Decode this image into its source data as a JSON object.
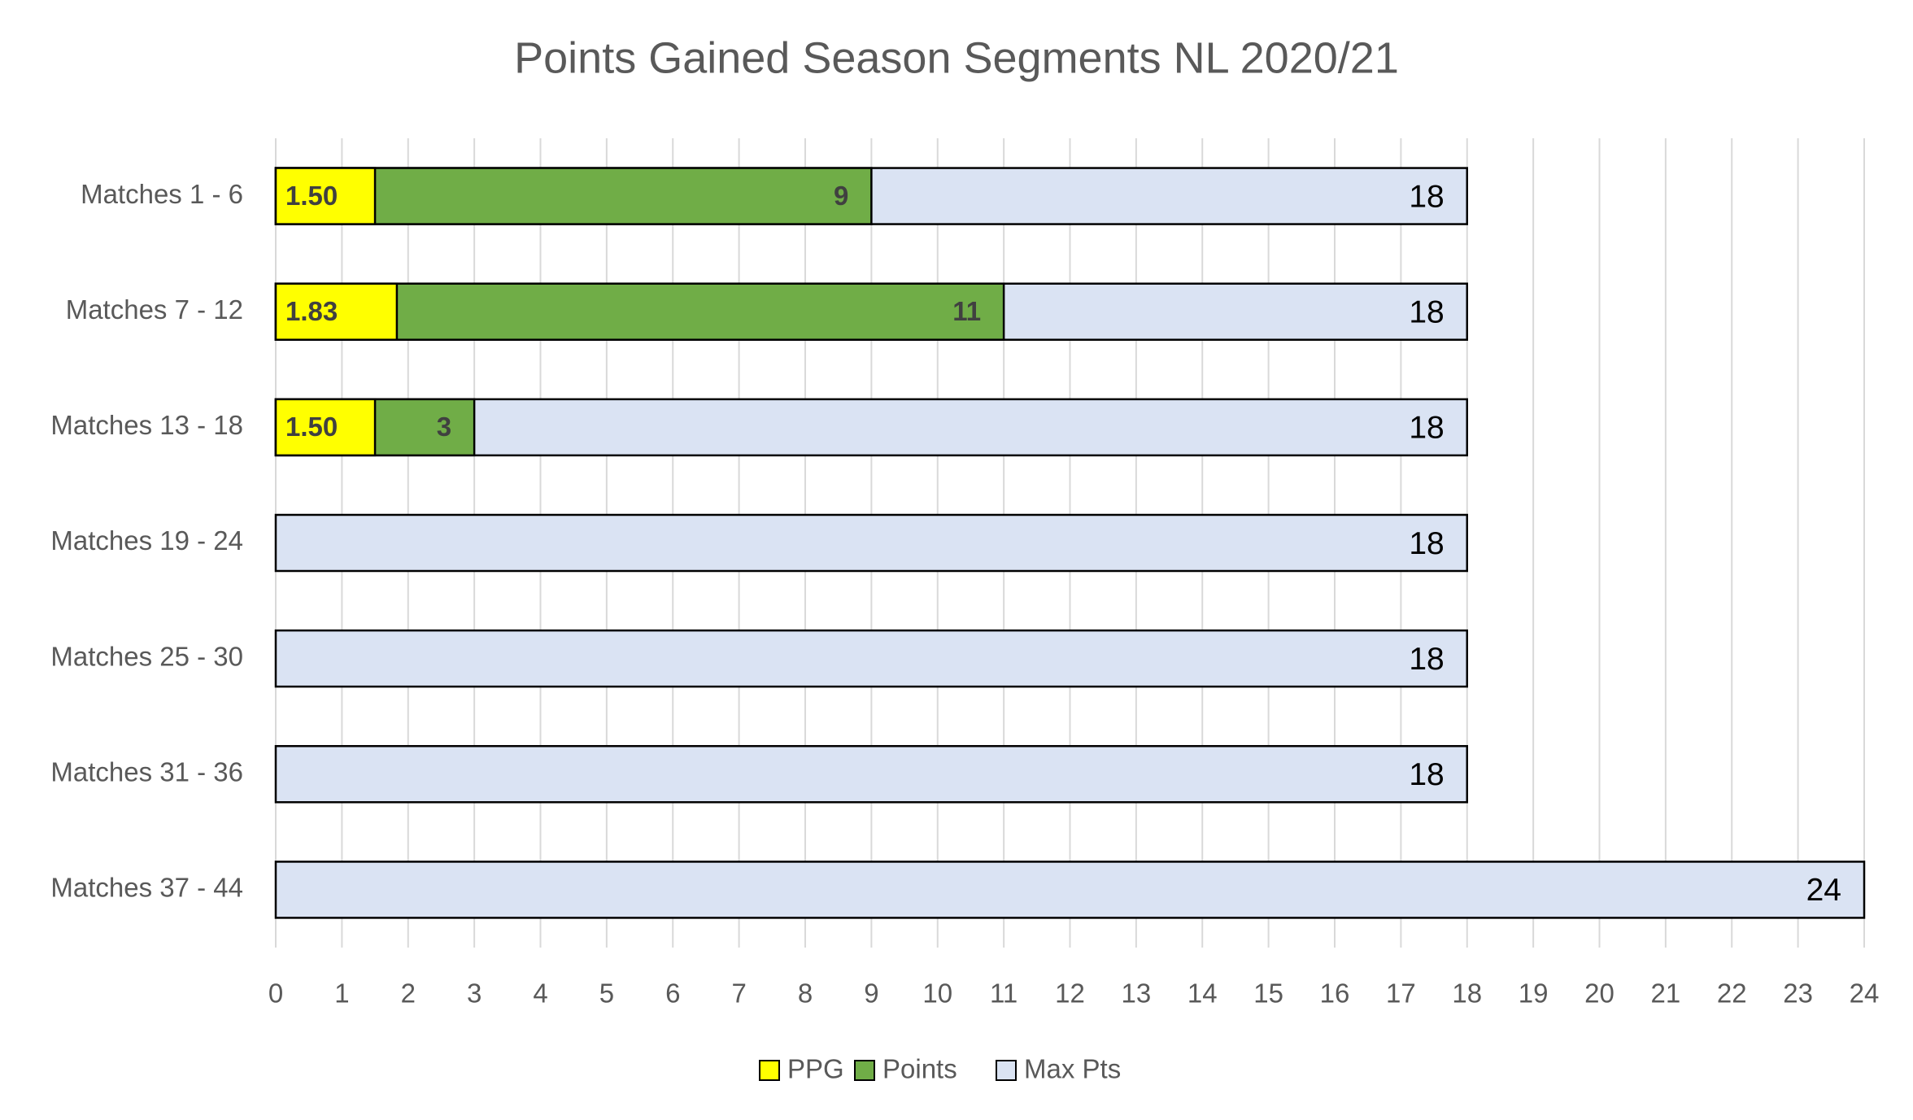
{
  "chart_data": {
    "type": "bar",
    "orientation": "horizontal",
    "barmode": "overlay",
    "title": "Points Gained Season Segments NL 2020/21",
    "categories": [
      "Matches 1 - 6",
      "Matches 7 - 12",
      "Matches 13 - 18",
      "Matches 19 - 24",
      "Matches 25 - 30",
      "Matches 31 - 36",
      "Matches 37 - 44"
    ],
    "series": [
      {
        "name": "PPG",
        "color": "#ffff00",
        "values": [
          1.5,
          1.83,
          1.5,
          null,
          null,
          null,
          null
        ],
        "value_labels": [
          "1.50",
          "1.83",
          "1.50",
          null,
          null,
          null,
          null
        ]
      },
      {
        "name": "Points",
        "color": "#70ad47",
        "values": [
          9,
          11,
          3,
          null,
          null,
          null,
          null
        ]
      },
      {
        "name": "Max Pts",
        "color": "#dae3f3",
        "values": [
          18,
          18,
          18,
          18,
          18,
          18,
          24
        ]
      }
    ],
    "xlim": [
      0,
      24
    ],
    "xticks": [
      0,
      1,
      2,
      3,
      4,
      5,
      6,
      7,
      8,
      9,
      10,
      11,
      12,
      13,
      14,
      15,
      16,
      17,
      18,
      19,
      20,
      21,
      22,
      23,
      24
    ],
    "grid": true,
    "legend": "bottom"
  }
}
